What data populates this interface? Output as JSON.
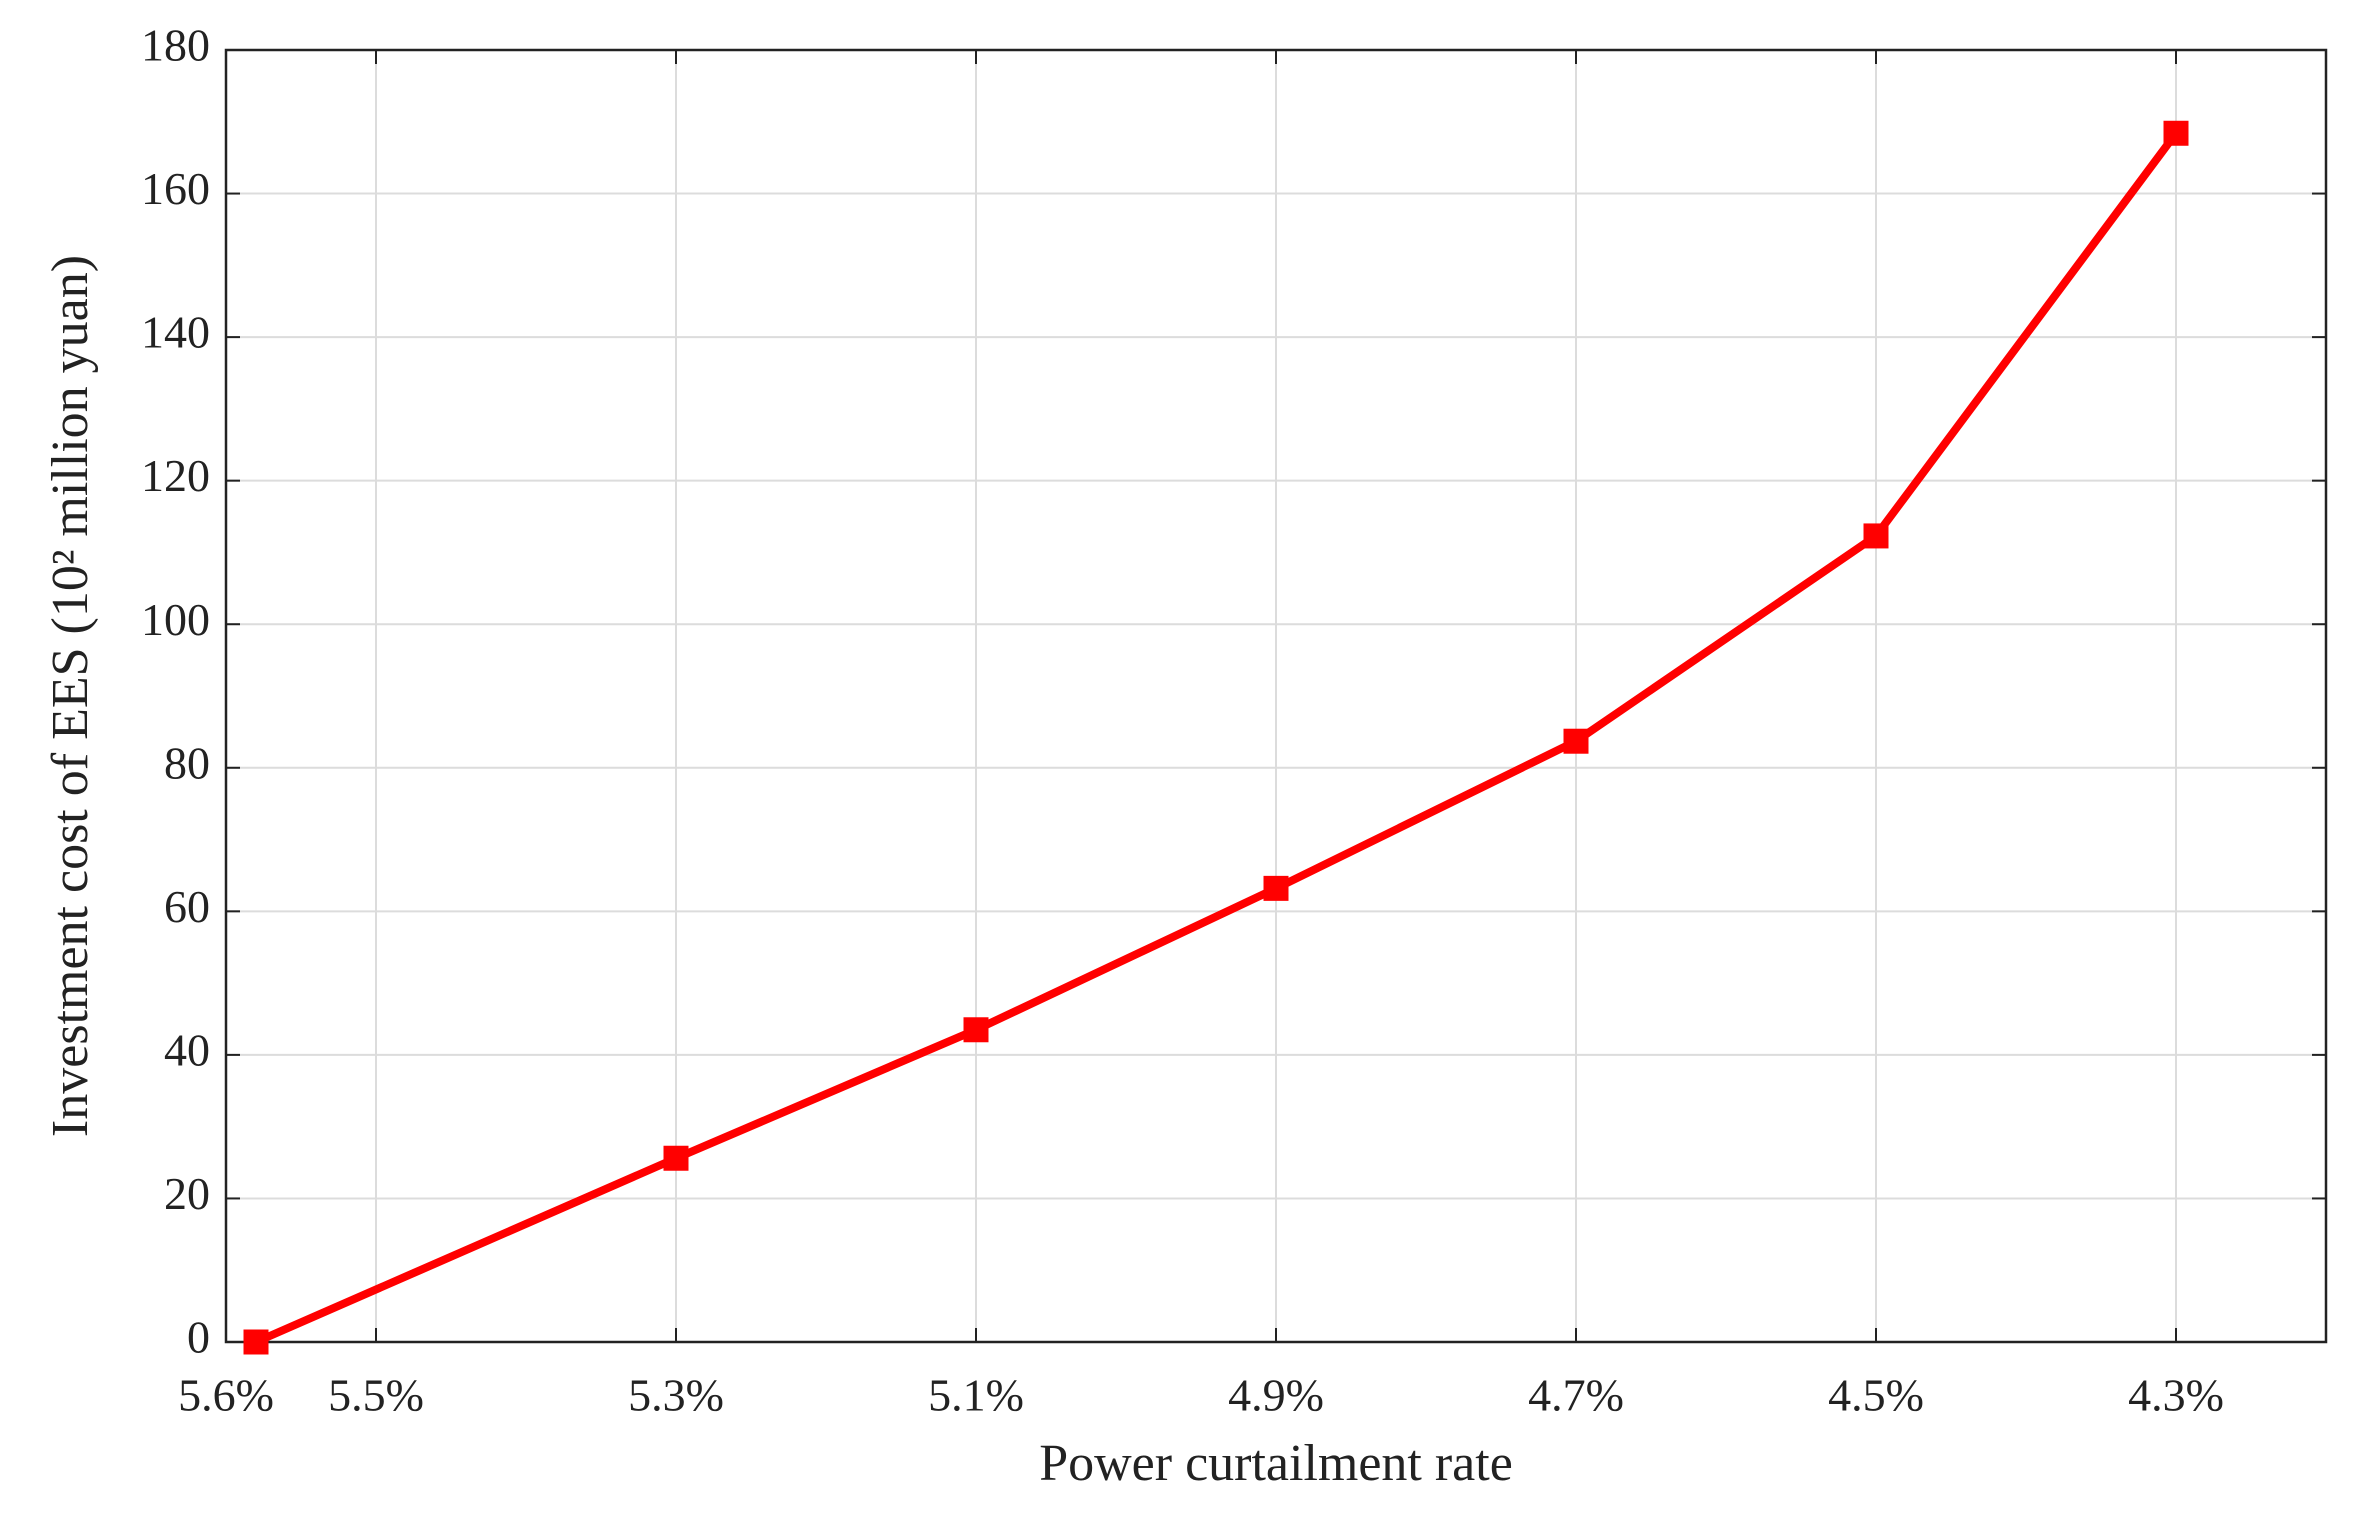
{
  "chart_data": {
    "type": "line",
    "xlabel": "Power curtailment rate",
    "ylabel": "Investment cost of EES (10² million yuan)",
    "x": [
      5.58,
      5.3,
      5.1,
      4.9,
      4.7,
      4.5,
      4.3
    ],
    "series": [
      {
        "name": "Investment cost",
        "color": "#ff0000",
        "values": [
          0,
          25.6,
          43.5,
          63.2,
          83.7,
          112.3,
          168.4
        ]
      }
    ],
    "xlim": [
      5.6,
      4.2
    ],
    "xticks": [
      {
        "value": 5.6,
        "label": "5.6%"
      },
      {
        "value": 5.5,
        "label": "5.5%"
      },
      {
        "value": 5.3,
        "label": "5.3%"
      },
      {
        "value": 5.1,
        "label": "5.1%"
      },
      {
        "value": 4.9,
        "label": "4.9%"
      },
      {
        "value": 4.7,
        "label": "4.7%"
      },
      {
        "value": 4.5,
        "label": "4.5%"
      },
      {
        "value": 4.3,
        "label": "4.3%"
      }
    ],
    "ylim": [
      0,
      180
    ],
    "yticks": [
      0,
      20,
      40,
      60,
      80,
      100,
      120,
      140,
      160,
      180
    ],
    "grid": true
  }
}
